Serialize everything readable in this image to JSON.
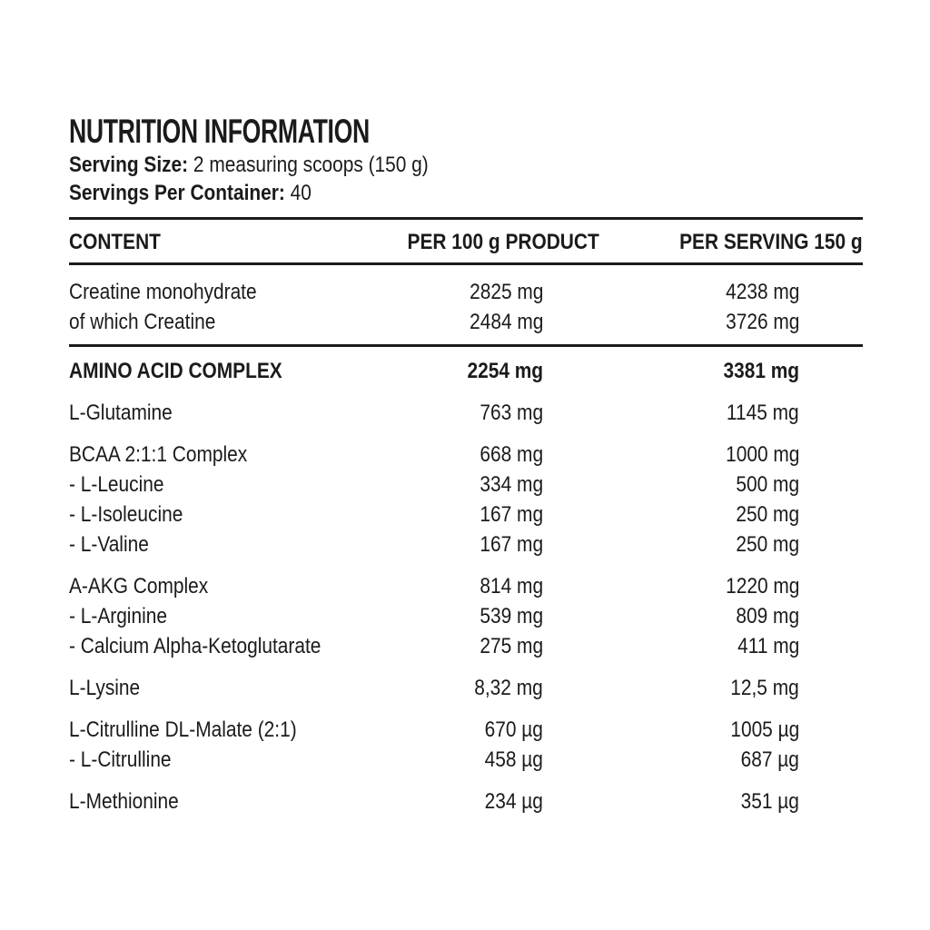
{
  "title": "NUTRITION INFORMATION",
  "serving_size": {
    "label": "Serving Size:",
    "value": "2 measuring scoops (150 g)"
  },
  "servings_per_container": {
    "label": "Servings Per Container:",
    "value": "40"
  },
  "colors": {
    "text": "#1b1b1b",
    "background": "#ffffff"
  },
  "table": {
    "headers": [
      "CONTENT",
      "PER 100 g PRODUCT",
      "PER SERVING 150 g"
    ],
    "groups": [
      {
        "divider_after": true,
        "rows": [
          {
            "name": "Creatine monohydrate",
            "per_100g": "2825 mg",
            "per_serving": "4238 mg"
          },
          {
            "name": "of which Creatine",
            "per_100g": "2484 mg",
            "per_serving": "3726 mg"
          }
        ]
      },
      {
        "rows": [
          {
            "name": "AMINO ACID COMPLEX",
            "per_100g": "2254 mg",
            "per_serving": "3381 mg",
            "bold": true
          }
        ]
      },
      {
        "rows": [
          {
            "name": "L-Glutamine",
            "per_100g": "763 mg",
            "per_serving": "1145 mg"
          }
        ]
      },
      {
        "rows": [
          {
            "name": "BCAA 2:1:1 Complex",
            "per_100g": "668 mg",
            "per_serving": "1000 mg"
          },
          {
            "name": "- L-Leucine",
            "per_100g": "334 mg",
            "per_serving": "500 mg"
          },
          {
            "name": "- L-Isoleucine",
            "per_100g": "167 mg",
            "per_serving": "250 mg"
          },
          {
            "name": "- L-Valine",
            "per_100g": "167 mg",
            "per_serving": "250 mg"
          }
        ]
      },
      {
        "rows": [
          {
            "name": "A-AKG Complex",
            "per_100g": "814 mg",
            "per_serving": "1220 mg"
          },
          {
            "name": "- L-Arginine",
            "per_100g": "539 mg",
            "per_serving": "809 mg"
          },
          {
            "name": "- Calcium Alpha-Ketoglutarate",
            "per_100g": "275 mg",
            "per_serving": "411 mg"
          }
        ]
      },
      {
        "rows": [
          {
            "name": "L-Lysine",
            "per_100g": "8,32 mg",
            "per_serving": "12,5 mg"
          }
        ]
      },
      {
        "rows": [
          {
            "name": "L-Citrulline DL-Malate (2:1)",
            "per_100g": "670 µg",
            "per_serving": "1005 µg"
          },
          {
            "name": "- L-Citrulline",
            "per_100g": "458 µg",
            "per_serving": "687 µg"
          }
        ]
      },
      {
        "rows": [
          {
            "name": "L-Methionine",
            "per_100g": "234 µg",
            "per_serving": "351 µg"
          }
        ]
      }
    ]
  }
}
